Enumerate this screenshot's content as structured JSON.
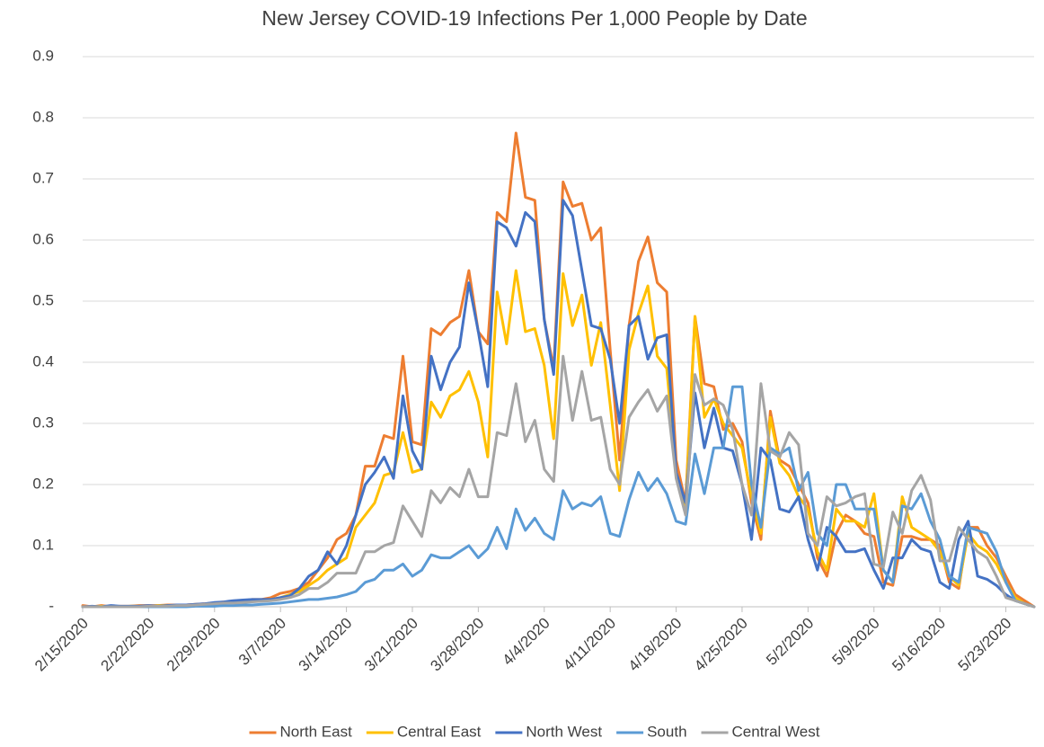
{
  "chart_data": {
    "type": "line",
    "title": "New Jersey COVID-19 Infections Per 1,000 People by Date",
    "categories": [
      "2/15/2020",
      null,
      null,
      null,
      null,
      null,
      null,
      "2/22/2020",
      null,
      null,
      null,
      null,
      null,
      null,
      "2/29/2020",
      null,
      null,
      null,
      null,
      null,
      null,
      "3/7/2020",
      null,
      null,
      null,
      null,
      null,
      null,
      "3/14/2020",
      null,
      null,
      null,
      null,
      null,
      null,
      "3/21/2020",
      null,
      null,
      null,
      null,
      null,
      null,
      "3/28/2020",
      null,
      null,
      null,
      null,
      null,
      null,
      "4/4/2020",
      null,
      null,
      null,
      null,
      null,
      null,
      "4/11/2020",
      null,
      null,
      null,
      null,
      null,
      null,
      "4/18/2020",
      null,
      null,
      null,
      null,
      null,
      null,
      "4/25/2020",
      null,
      null,
      null,
      null,
      null,
      null,
      "5/2/2020",
      null,
      null,
      null,
      null,
      null,
      null,
      "5/9/2020",
      null,
      null,
      null,
      null,
      null,
      null,
      "5/16/2020",
      null,
      null,
      null,
      null,
      null,
      null,
      "5/23/2020",
      null,
      null,
      null
    ],
    "ylim": [
      0,
      0.9
    ],
    "yticks": [
      {
        "value": 0,
        "label": "-"
      },
      0.1,
      0.2,
      0.3,
      0.4,
      0.5,
      0.6,
      0.7,
      0.8,
      0.9
    ],
    "grid": true,
    "legend": "bottom",
    "series": [
      {
        "name": "North East",
        "color": "#ed7d31",
        "values": [
          0.002,
          0,
          0.002,
          0,
          0.001,
          0.001,
          0.002,
          0.002,
          0.002,
          0.003,
          0.003,
          0.003,
          0.004,
          0.005,
          0.006,
          0.008,
          0.008,
          0.01,
          0.012,
          0.012,
          0.015,
          0.022,
          0.025,
          0.03,
          0.04,
          0.06,
          0.08,
          0.11,
          0.12,
          0.15,
          0.23,
          0.23,
          0.28,
          0.275,
          0.41,
          0.27,
          0.265,
          0.455,
          0.445,
          0.465,
          0.475,
          0.55,
          0.45,
          0.43,
          0.645,
          0.63,
          0.775,
          0.67,
          0.665,
          0.47,
          0.39,
          0.695,
          0.655,
          0.66,
          0.6,
          0.62,
          0.42,
          0.24,
          0.46,
          0.565,
          0.605,
          0.53,
          0.515,
          0.24,
          0.17,
          0.475,
          0.365,
          0.36,
          0.29,
          0.3,
          0.27,
          0.17,
          0.11,
          0.32,
          0.24,
          0.23,
          0.2,
          0.17,
          0.08,
          0.05,
          0.12,
          0.15,
          0.14,
          0.12,
          0.115,
          0.04,
          0.035,
          0.115,
          0.115,
          0.11,
          0.11,
          0.1,
          0.04,
          0.03,
          0.13,
          0.13,
          0.1,
          0.08,
          0.05,
          0.02,
          0.01,
          0
        ]
      },
      {
        "name": "Central East",
        "color": "#ffc000",
        "values": [
          0,
          0,
          0.001,
          0,
          0,
          0.001,
          0.001,
          0.001,
          0.002,
          0.002,
          0.002,
          0.003,
          0.003,
          0.004,
          0.005,
          0.006,
          0.007,
          0.008,
          0.01,
          0.01,
          0.012,
          0.015,
          0.02,
          0.025,
          0.035,
          0.045,
          0.06,
          0.07,
          0.08,
          0.13,
          0.15,
          0.17,
          0.215,
          0.22,
          0.285,
          0.22,
          0.225,
          0.335,
          0.31,
          0.345,
          0.355,
          0.385,
          0.335,
          0.245,
          0.515,
          0.43,
          0.55,
          0.45,
          0.455,
          0.395,
          0.275,
          0.545,
          0.46,
          0.51,
          0.395,
          0.465,
          0.33,
          0.19,
          0.42,
          0.48,
          0.525,
          0.41,
          0.39,
          0.22,
          0.16,
          0.475,
          0.31,
          0.34,
          0.3,
          0.28,
          0.26,
          0.18,
          0.12,
          0.31,
          0.235,
          0.215,
          0.18,
          0.16,
          0.09,
          0.06,
          0.16,
          0.14,
          0.14,
          0.13,
          0.185,
          0.06,
          0.04,
          0.18,
          0.13,
          0.12,
          0.11,
          0.09,
          0.05,
          0.035,
          0.12,
          0.1,
          0.09,
          0.07,
          0.04,
          0.015,
          0.005,
          0
        ]
      },
      {
        "name": "North West",
        "color": "#4472c4",
        "values": [
          0,
          0.001,
          0,
          0.002,
          0.001,
          0.001,
          0.001,
          0.002,
          0.001,
          0.002,
          0.003,
          0.003,
          0.004,
          0.005,
          0.007,
          0.008,
          0.01,
          0.011,
          0.012,
          0.012,
          0.012,
          0.015,
          0.018,
          0.03,
          0.05,
          0.06,
          0.09,
          0.07,
          0.1,
          0.15,
          0.2,
          0.22,
          0.245,
          0.21,
          0.345,
          0.255,
          0.225,
          0.41,
          0.355,
          0.4,
          0.425,
          0.53,
          0.45,
          0.36,
          0.63,
          0.62,
          0.59,
          0.645,
          0.63,
          0.47,
          0.38,
          0.665,
          0.64,
          0.55,
          0.46,
          0.455,
          0.405,
          0.3,
          0.46,
          0.475,
          0.405,
          0.44,
          0.445,
          0.22,
          0.17,
          0.35,
          0.26,
          0.325,
          0.26,
          0.255,
          0.2,
          0.11,
          0.26,
          0.24,
          0.16,
          0.155,
          0.18,
          0.11,
          0.06,
          0.13,
          0.115,
          0.09,
          0.09,
          0.095,
          0.06,
          0.03,
          0.08,
          0.08,
          0.11,
          0.095,
          0.09,
          0.04,
          0.03,
          0.11,
          0.14,
          0.05,
          0.045,
          0.035,
          0.02,
          0.01,
          0.005,
          0
        ]
      },
      {
        "name": "South",
        "color": "#5b9bd5",
        "values": [
          0,
          0,
          0,
          0,
          0,
          0,
          0,
          0,
          0,
          0,
          0,
          0,
          0.001,
          0.001,
          0.001,
          0.002,
          0.002,
          0.003,
          0.003,
          0.004,
          0.005,
          0.006,
          0.008,
          0.01,
          0.012,
          0.012,
          0.014,
          0.016,
          0.02,
          0.025,
          0.04,
          0.045,
          0.06,
          0.06,
          0.07,
          0.05,
          0.06,
          0.085,
          0.08,
          0.08,
          0.09,
          0.1,
          0.08,
          0.095,
          0.13,
          0.095,
          0.16,
          0.125,
          0.145,
          0.12,
          0.11,
          0.19,
          0.16,
          0.17,
          0.165,
          0.18,
          0.12,
          0.115,
          0.175,
          0.22,
          0.19,
          0.21,
          0.185,
          0.14,
          0.135,
          0.25,
          0.185,
          0.26,
          0.26,
          0.36,
          0.36,
          0.2,
          0.13,
          0.26,
          0.25,
          0.26,
          0.19,
          0.22,
          0.12,
          0.1,
          0.2,
          0.2,
          0.16,
          0.16,
          0.16,
          0.06,
          0.04,
          0.165,
          0.16,
          0.185,
          0.14,
          0.11,
          0.05,
          0.04,
          0.13,
          0.125,
          0.12,
          0.09,
          0.04,
          0.01,
          0.005,
          0
        ]
      },
      {
        "name": "Central West",
        "color": "#a5a5a5",
        "values": [
          0,
          0,
          0,
          0,
          0,
          0,
          0,
          0.001,
          0.001,
          0.001,
          0.002,
          0.002,
          0.003,
          0.004,
          0.005,
          0.006,
          0.006,
          0.007,
          0.008,
          0.009,
          0.01,
          0.012,
          0.015,
          0.02,
          0.03,
          0.03,
          0.04,
          0.055,
          0.055,
          0.055,
          0.09,
          0.09,
          0.1,
          0.105,
          0.165,
          0.14,
          0.115,
          0.19,
          0.17,
          0.195,
          0.18,
          0.225,
          0.18,
          0.18,
          0.285,
          0.28,
          0.365,
          0.27,
          0.305,
          0.225,
          0.205,
          0.41,
          0.305,
          0.385,
          0.305,
          0.31,
          0.225,
          0.2,
          0.31,
          0.335,
          0.355,
          0.32,
          0.345,
          0.21,
          0.15,
          0.38,
          0.33,
          0.34,
          0.33,
          0.29,
          0.2,
          0.15,
          0.365,
          0.255,
          0.245,
          0.285,
          0.265,
          0.12,
          0.1,
          0.18,
          0.165,
          0.17,
          0.18,
          0.185,
          0.07,
          0.065,
          0.155,
          0.12,
          0.19,
          0.215,
          0.175,
          0.075,
          0.075,
          0.13,
          0.11,
          0.09,
          0.08,
          0.05,
          0.015,
          0.01,
          0.005,
          0
        ]
      }
    ]
  }
}
